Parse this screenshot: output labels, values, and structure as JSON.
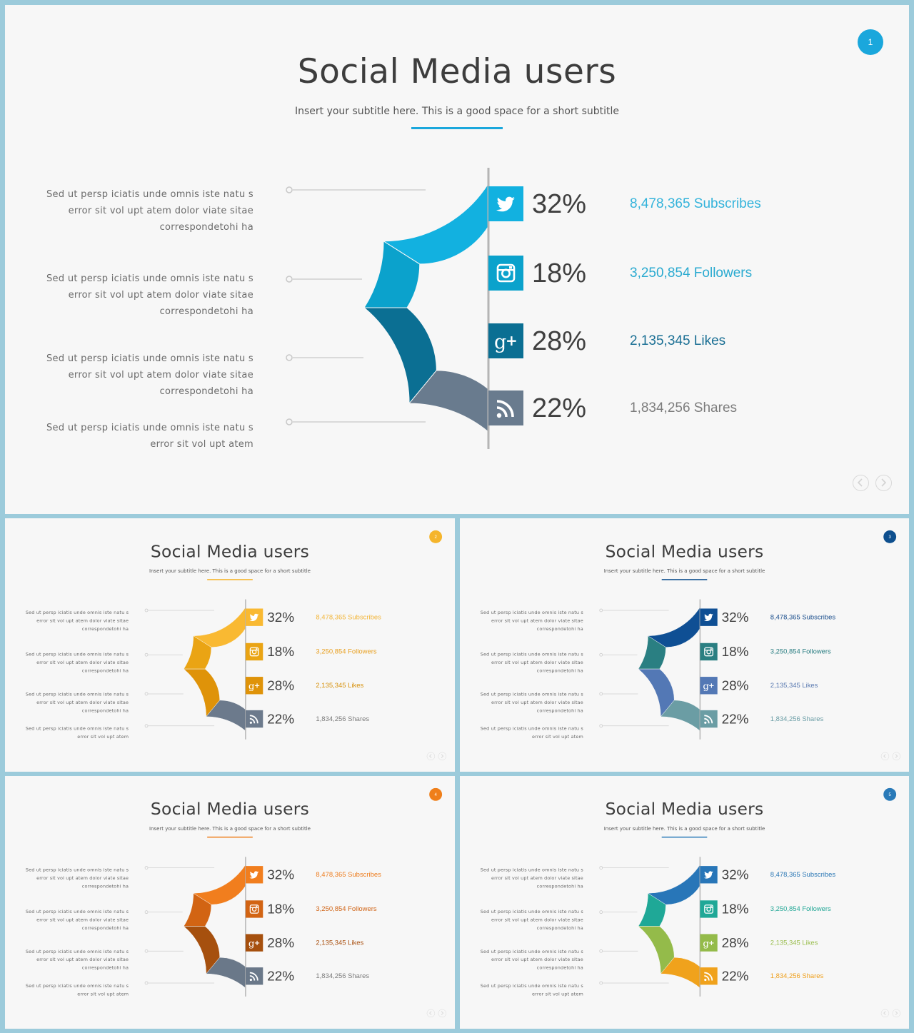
{
  "heading": "Social Media users",
  "subtitle": "Insert your subtitle here. This is a good space for a short subtitle",
  "descriptions": [
    [
      "Sed ut persp iciatis unde omnis iste natu s",
      "error sit vol upt atem dolor viate sitae",
      "correspondetohi ha"
    ],
    [
      "Sed ut persp iciatis unde omnis iste natu s",
      "error sit vol upt atem dolor viate sitae",
      "correspondetohi ha"
    ],
    [
      "Sed ut persp iciatis unde omnis iste natu s",
      "error sit vol upt atem dolor viate sitae",
      "correspondetohi ha"
    ],
    [
      "Sed ut persp iciatis unde omnis iste natu s",
      "error sit vol upt atem"
    ]
  ],
  "stats": [
    {
      "platform": "twitter",
      "icon": "twitter-icon",
      "percent": "32%",
      "label": "8,478,365 Subscribes"
    },
    {
      "platform": "instagram",
      "icon": "instagram-icon",
      "percent": "18%",
      "label": "3,250,854 Followers"
    },
    {
      "platform": "google-plus",
      "icon": "google-plus-icon",
      "percent": "28%",
      "label": "2,135,345 Likes"
    },
    {
      "platform": "rss",
      "icon": "rss-icon",
      "percent": "22%",
      "label": "1,834,256 Shares"
    }
  ],
  "slides": [
    {
      "page": "1",
      "accent": "#1aa7dc",
      "colors": [
        "#12b1e0",
        "#0ba2cc",
        "#0b6f93",
        "#697b8e"
      ],
      "text_colors": [
        "#33b3db",
        "#2aaad0",
        "#1a6f94",
        "#7c7c7c"
      ]
    },
    {
      "page": "2",
      "accent": "#f5b52c",
      "colors": [
        "#f9b932",
        "#eaa414",
        "#df9309",
        "#6c7a8c"
      ],
      "text_colors": [
        "#f3b63a",
        "#e8a021",
        "#d7910b",
        "#7c7c7c"
      ]
    },
    {
      "page": "3",
      "accent": "#0e4f8e",
      "colors": [
        "#0f4f94",
        "#2a7f82",
        "#5378b5",
        "#6b9da4"
      ],
      "text_colors": [
        "#1c4f8d",
        "#2a7e82",
        "#5a7ab1",
        "#6b9ea6"
      ]
    },
    {
      "page": "4",
      "accent": "#ef7f1a",
      "colors": [
        "#f17e1e",
        "#d26413",
        "#a6500e",
        "#6a7889"
      ],
      "text_colors": [
        "#ee7d1e",
        "#d06416",
        "#a95010",
        "#7c7c7c"
      ]
    },
    {
      "page": "5",
      "accent": "#2a7ab8",
      "colors": [
        "#2876b8",
        "#1fa897",
        "#94bb4a",
        "#f0a21c"
      ],
      "text_colors": [
        "#2a77b5",
        "#22a796",
        "#99bd4d",
        "#efa01d"
      ]
    }
  ],
  "chart_data": {
    "type": "pie",
    "categories": [
      "Twitter",
      "Instagram",
      "Google+",
      "RSS"
    ],
    "values": [
      32,
      18,
      28,
      22
    ]
  }
}
